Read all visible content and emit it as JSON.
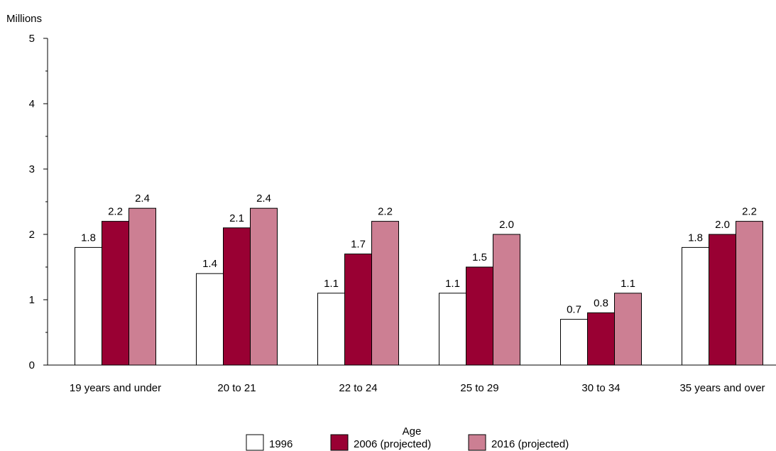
{
  "chart_data": {
    "type": "bar",
    "ylabel": "Millions",
    "xlabel": "Age",
    "ylim": [
      0,
      5
    ],
    "yticks": [
      0,
      1,
      2,
      3,
      4,
      5
    ],
    "minor_ticks": true,
    "grid": false,
    "legend_position": "bottom",
    "categories": [
      "19 years and under",
      "20 to 21",
      "22 to 24",
      "25 to 29",
      "30 to 34",
      "35 years and over"
    ],
    "series": [
      {
        "name": "1996",
        "values": [
          1.8,
          1.4,
          1.1,
          1.1,
          0.7,
          1.8
        ],
        "labels": [
          "1.8",
          "1.4",
          "1.1",
          "1.1",
          "0.7",
          "1.8"
        ],
        "color": "#ffffff"
      },
      {
        "name": "2006 (projected)",
        "values": [
          2.2,
          2.1,
          1.7,
          1.5,
          0.8,
          2.0
        ],
        "labels": [
          "2.2",
          "2.1",
          "1.7",
          "1.5",
          "0.8",
          "2.0"
        ],
        "color": "#990033"
      },
      {
        "name": "2016 (projected)",
        "values": [
          2.4,
          2.4,
          2.2,
          2.0,
          1.1,
          2.2
        ],
        "labels": [
          "2.4",
          "2.4",
          "2.2",
          "2.0",
          "1.1",
          "2.2"
        ],
        "color": "#cc7f93"
      }
    ]
  }
}
